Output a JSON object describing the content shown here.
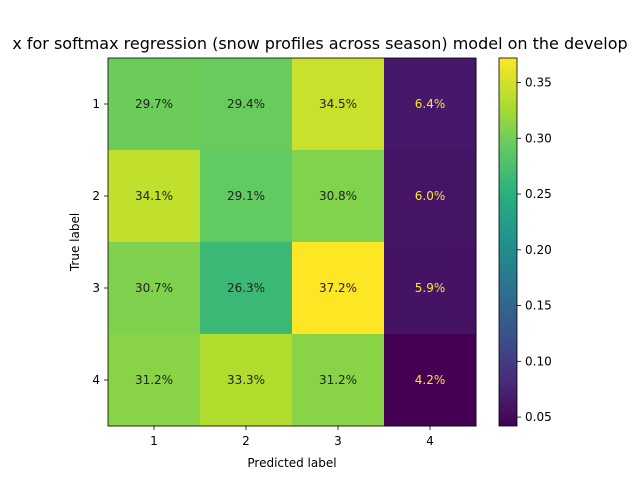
{
  "chart_data": {
    "type": "heatmap",
    "title": "x for softmax regression (snow profiles across season) model on the develop",
    "xlabel": "Predicted label",
    "ylabel": "True label",
    "x_categories": [
      "1",
      "2",
      "3",
      "4"
    ],
    "y_categories": [
      "1",
      "2",
      "3",
      "4"
    ],
    "values": [
      [
        0.297,
        0.294,
        0.345,
        0.064
      ],
      [
        0.341,
        0.291,
        0.308,
        0.06
      ],
      [
        0.307,
        0.263,
        0.372,
        0.059
      ],
      [
        0.312,
        0.333,
        0.312,
        0.042
      ]
    ],
    "cell_labels": [
      [
        "29.7%",
        "29.4%",
        "34.5%",
        "6.4%"
      ],
      [
        "34.1%",
        "29.1%",
        "30.8%",
        "6.0%"
      ],
      [
        "30.7%",
        "26.3%",
        "37.2%",
        "5.9%"
      ],
      [
        "31.2%",
        "33.3%",
        "31.2%",
        "4.2%"
      ]
    ],
    "colorscale": "viridis",
    "color_range": [
      0.042,
      0.372
    ],
    "colorbar_ticks": [
      "0.05",
      "0.10",
      "0.15",
      "0.20",
      "0.25",
      "0.30",
      "0.35"
    ],
    "colorbar_tick_values": [
      0.05,
      0.1,
      0.15,
      0.2,
      0.25,
      0.3,
      0.35
    ],
    "grid": false
  }
}
